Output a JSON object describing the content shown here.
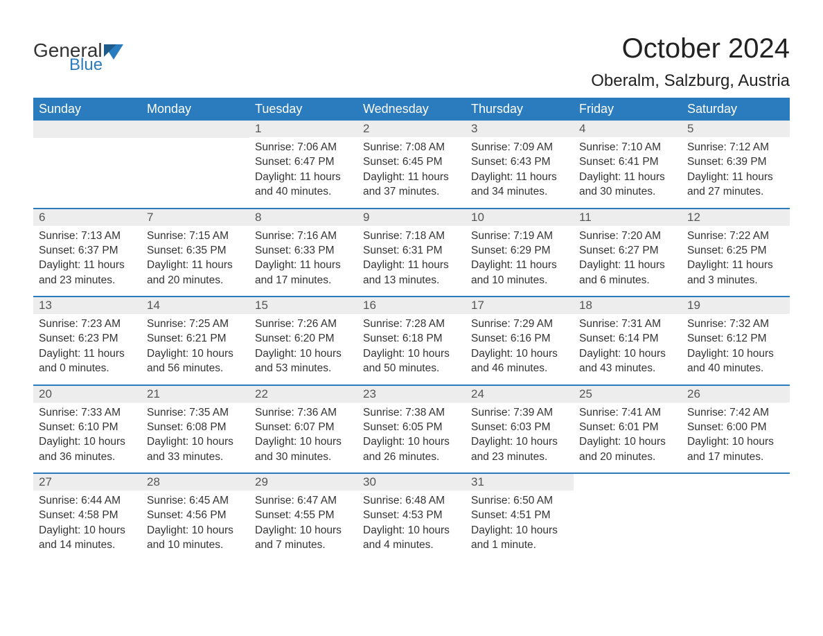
{
  "brand": {
    "text1": "General",
    "text2": "Blue",
    "color_general": "#333333",
    "color_blue": "#2b7cbe"
  },
  "title": "October 2024",
  "location": "Oberalm, Salzburg, Austria",
  "colors": {
    "header_bg": "#2b7cbe",
    "header_text": "#ffffff",
    "daynum_bg": "#ededed",
    "daynum_text": "#555555",
    "body_text": "#333333",
    "divider": "#2b7cbe",
    "background": "#ffffff"
  },
  "typography": {
    "title_fontsize": 40,
    "location_fontsize": 24,
    "header_fontsize": 18,
    "daynum_fontsize": 17,
    "body_fontsize": 15.5
  },
  "day_labels": [
    "Sunday",
    "Monday",
    "Tuesday",
    "Wednesday",
    "Thursday",
    "Friday",
    "Saturday"
  ],
  "weeks": [
    [
      null,
      null,
      {
        "n": "1",
        "sunrise": "7:06 AM",
        "sunset": "6:47 PM",
        "daylight": "11 hours and 40 minutes."
      },
      {
        "n": "2",
        "sunrise": "7:08 AM",
        "sunset": "6:45 PM",
        "daylight": "11 hours and 37 minutes."
      },
      {
        "n": "3",
        "sunrise": "7:09 AM",
        "sunset": "6:43 PM",
        "daylight": "11 hours and 34 minutes."
      },
      {
        "n": "4",
        "sunrise": "7:10 AM",
        "sunset": "6:41 PM",
        "daylight": "11 hours and 30 minutes."
      },
      {
        "n": "5",
        "sunrise": "7:12 AM",
        "sunset": "6:39 PM",
        "daylight": "11 hours and 27 minutes."
      }
    ],
    [
      {
        "n": "6",
        "sunrise": "7:13 AM",
        "sunset": "6:37 PM",
        "daylight": "11 hours and 23 minutes."
      },
      {
        "n": "7",
        "sunrise": "7:15 AM",
        "sunset": "6:35 PM",
        "daylight": "11 hours and 20 minutes."
      },
      {
        "n": "8",
        "sunrise": "7:16 AM",
        "sunset": "6:33 PM",
        "daylight": "11 hours and 17 minutes."
      },
      {
        "n": "9",
        "sunrise": "7:18 AM",
        "sunset": "6:31 PM",
        "daylight": "11 hours and 13 minutes."
      },
      {
        "n": "10",
        "sunrise": "7:19 AM",
        "sunset": "6:29 PM",
        "daylight": "11 hours and 10 minutes."
      },
      {
        "n": "11",
        "sunrise": "7:20 AM",
        "sunset": "6:27 PM",
        "daylight": "11 hours and 6 minutes."
      },
      {
        "n": "12",
        "sunrise": "7:22 AM",
        "sunset": "6:25 PM",
        "daylight": "11 hours and 3 minutes."
      }
    ],
    [
      {
        "n": "13",
        "sunrise": "7:23 AM",
        "sunset": "6:23 PM",
        "daylight": "11 hours and 0 minutes."
      },
      {
        "n": "14",
        "sunrise": "7:25 AM",
        "sunset": "6:21 PM",
        "daylight": "10 hours and 56 minutes."
      },
      {
        "n": "15",
        "sunrise": "7:26 AM",
        "sunset": "6:20 PM",
        "daylight": "10 hours and 53 minutes."
      },
      {
        "n": "16",
        "sunrise": "7:28 AM",
        "sunset": "6:18 PM",
        "daylight": "10 hours and 50 minutes."
      },
      {
        "n": "17",
        "sunrise": "7:29 AM",
        "sunset": "6:16 PM",
        "daylight": "10 hours and 46 minutes."
      },
      {
        "n": "18",
        "sunrise": "7:31 AM",
        "sunset": "6:14 PM",
        "daylight": "10 hours and 43 minutes."
      },
      {
        "n": "19",
        "sunrise": "7:32 AM",
        "sunset": "6:12 PM",
        "daylight": "10 hours and 40 minutes."
      }
    ],
    [
      {
        "n": "20",
        "sunrise": "7:33 AM",
        "sunset": "6:10 PM",
        "daylight": "10 hours and 36 minutes."
      },
      {
        "n": "21",
        "sunrise": "7:35 AM",
        "sunset": "6:08 PM",
        "daylight": "10 hours and 33 minutes."
      },
      {
        "n": "22",
        "sunrise": "7:36 AM",
        "sunset": "6:07 PM",
        "daylight": "10 hours and 30 minutes."
      },
      {
        "n": "23",
        "sunrise": "7:38 AM",
        "sunset": "6:05 PM",
        "daylight": "10 hours and 26 minutes."
      },
      {
        "n": "24",
        "sunrise": "7:39 AM",
        "sunset": "6:03 PM",
        "daylight": "10 hours and 23 minutes."
      },
      {
        "n": "25",
        "sunrise": "7:41 AM",
        "sunset": "6:01 PM",
        "daylight": "10 hours and 20 minutes."
      },
      {
        "n": "26",
        "sunrise": "7:42 AM",
        "sunset": "6:00 PM",
        "daylight": "10 hours and 17 minutes."
      }
    ],
    [
      {
        "n": "27",
        "sunrise": "6:44 AM",
        "sunset": "4:58 PM",
        "daylight": "10 hours and 14 minutes."
      },
      {
        "n": "28",
        "sunrise": "6:45 AM",
        "sunset": "4:56 PM",
        "daylight": "10 hours and 10 minutes."
      },
      {
        "n": "29",
        "sunrise": "6:47 AM",
        "sunset": "4:55 PM",
        "daylight": "10 hours and 7 minutes."
      },
      {
        "n": "30",
        "sunrise": "6:48 AM",
        "sunset": "4:53 PM",
        "daylight": "10 hours and 4 minutes."
      },
      {
        "n": "31",
        "sunrise": "6:50 AM",
        "sunset": "4:51 PM",
        "daylight": "10 hours and 1 minute."
      },
      null,
      null
    ]
  ],
  "labels": {
    "sunrise": "Sunrise: ",
    "sunset": "Sunset: ",
    "daylight": "Daylight: "
  }
}
